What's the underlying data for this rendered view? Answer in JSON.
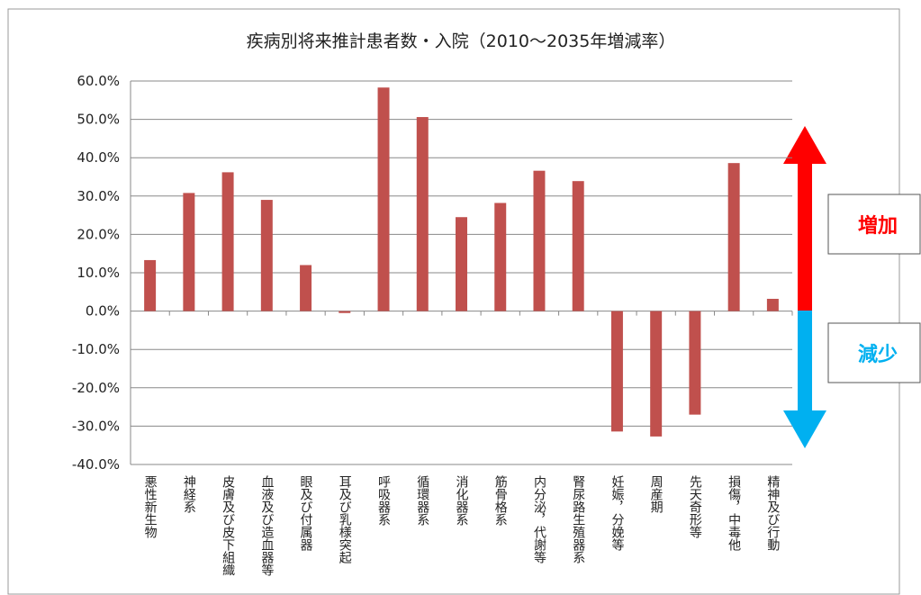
{
  "chart_data": {
    "type": "bar",
    "title": "疾病別将来推計患者数・入院（2010～2035年増減率）",
    "categories": [
      "悪性新生物",
      "神経系",
      "皮膚及び皮下組織",
      "血液及び造血器等",
      "眼及び付属器",
      "耳及び乳様突起",
      "呼吸器系",
      "循環器系",
      "消化器系",
      "筋骨格系",
      "内分泌，代謝等",
      "腎尿路生殖器系",
      "妊娠，分娩等",
      "周産期",
      "先天奇形等",
      "損傷，中毒他",
      "精神及び行動"
    ],
    "values": [
      13.3,
      30.8,
      36.2,
      29.0,
      12.0,
      -0.5,
      58.3,
      50.6,
      24.5,
      28.2,
      36.6,
      33.9,
      -31.4,
      -32.7,
      -27.0,
      38.6,
      3.2
    ],
    "color": "#c0504d",
    "ylim": [
      -40,
      60
    ],
    "yticks": [
      {
        "value": 60,
        "label": "60.0%"
      },
      {
        "value": 50,
        "label": "50.0%"
      },
      {
        "value": 40,
        "label": "40.0%"
      },
      {
        "value": 30,
        "label": "30.0%"
      },
      {
        "value": 20,
        "label": "20.0%"
      },
      {
        "value": 10,
        "label": "10.0%"
      },
      {
        "value": 0,
        "label": "0.0%"
      },
      {
        "value": -10,
        "label": "-10.0%"
      },
      {
        "value": -20,
        "label": "-20.0%"
      },
      {
        "value": -30,
        "label": "-30.0%"
      },
      {
        "value": -40,
        "label": "-40.0%"
      }
    ],
    "grid": true,
    "annotations": [
      "増加",
      "減少"
    ]
  }
}
